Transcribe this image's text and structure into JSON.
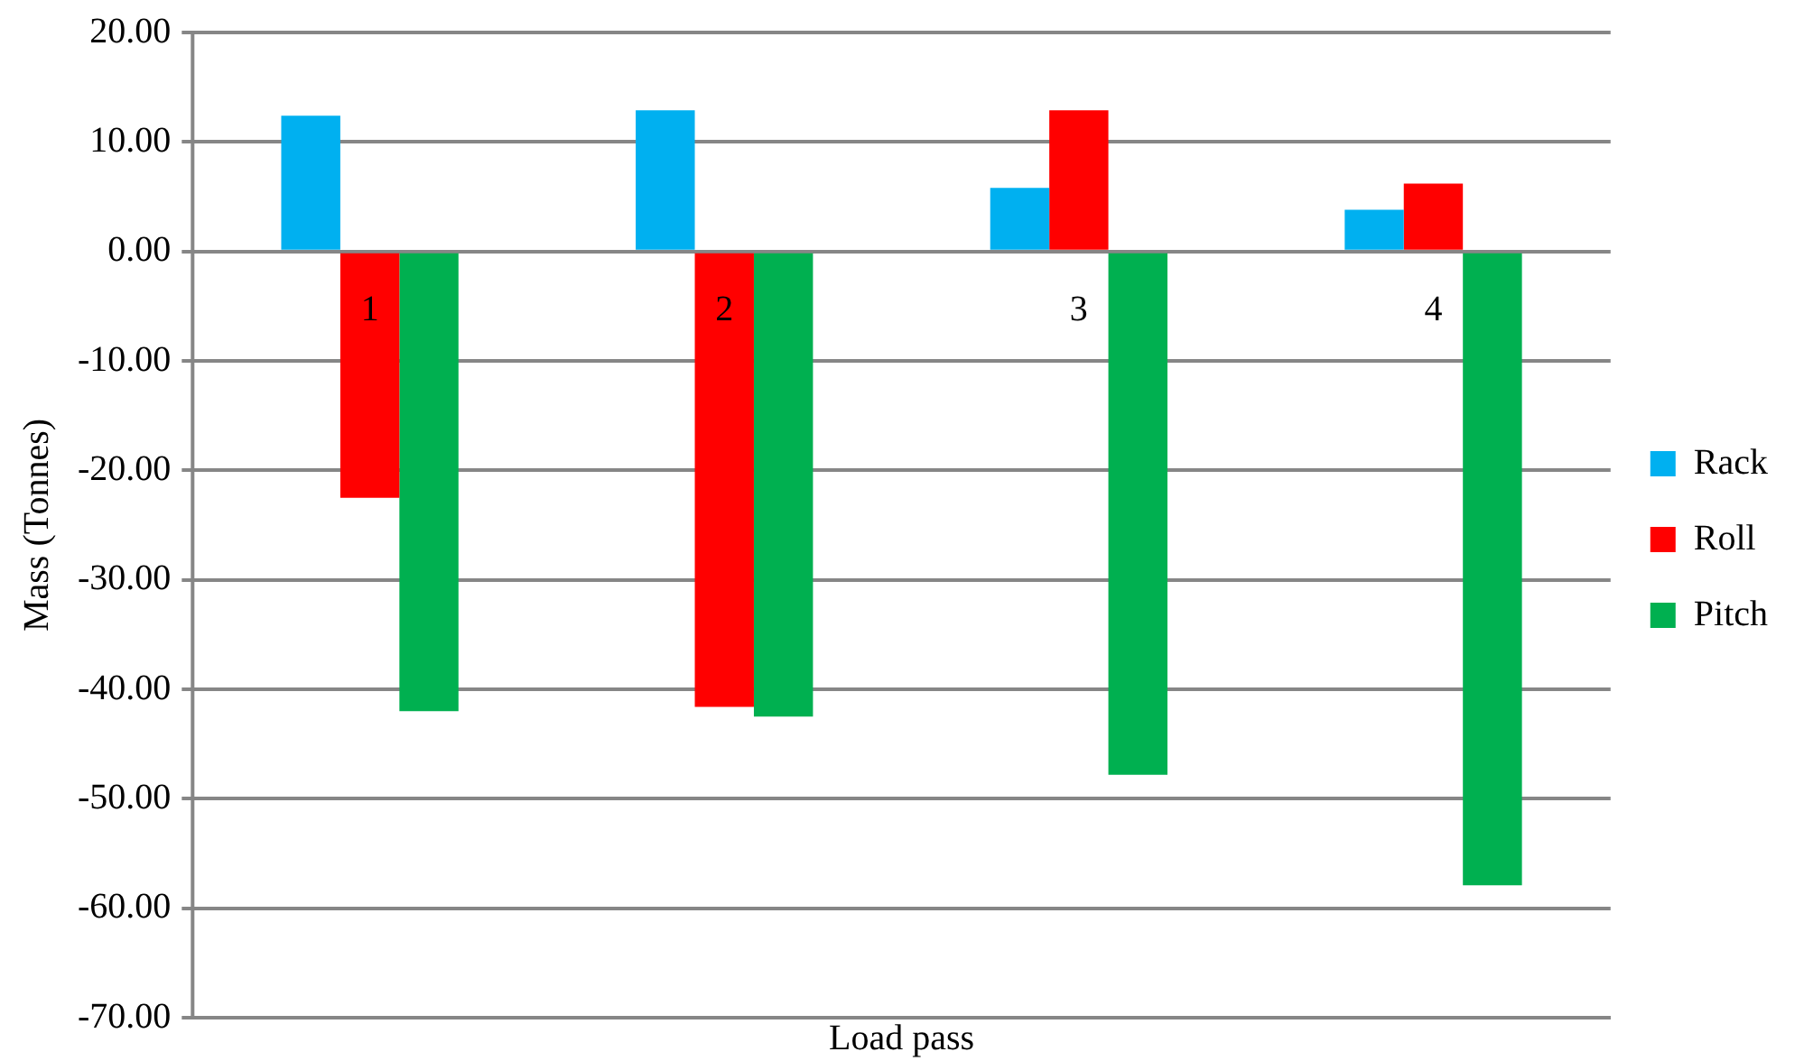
{
  "chart_data": {
    "type": "bar",
    "xlabel": "Load pass",
    "ylabel": "Mass (Tonnes)",
    "categories": [
      "1",
      "2",
      "3",
      "4"
    ],
    "series": [
      {
        "name": "Rack",
        "color": "#00b0f0",
        "values": [
          12.4,
          12.9,
          5.8,
          3.8
        ]
      },
      {
        "name": "Roll",
        "color": "#ff0000",
        "values": [
          -22.5,
          -41.6,
          12.9,
          6.2
        ]
      },
      {
        "name": "Pitch",
        "color": "#00b050",
        "values": [
          -42.0,
          -42.5,
          -47.8,
          -57.9
        ]
      }
    ],
    "ylim": [
      -70,
      20
    ],
    "yticks": [
      {
        "value": -70,
        "label": "-70.00"
      },
      {
        "value": -60,
        "label": "-60.00"
      },
      {
        "value": -50,
        "label": "-50.00"
      },
      {
        "value": -40,
        "label": "-40.00"
      },
      {
        "value": -30,
        "label": "-30.00"
      },
      {
        "value": -20,
        "label": "-20.00"
      },
      {
        "value": -10,
        "label": "-10.00"
      },
      {
        "value": 0,
        "label": "0.00"
      },
      {
        "value": 10,
        "label": "10.00"
      },
      {
        "value": 20,
        "label": "20.00"
      }
    ],
    "grid": "y",
    "legend": "right"
  }
}
